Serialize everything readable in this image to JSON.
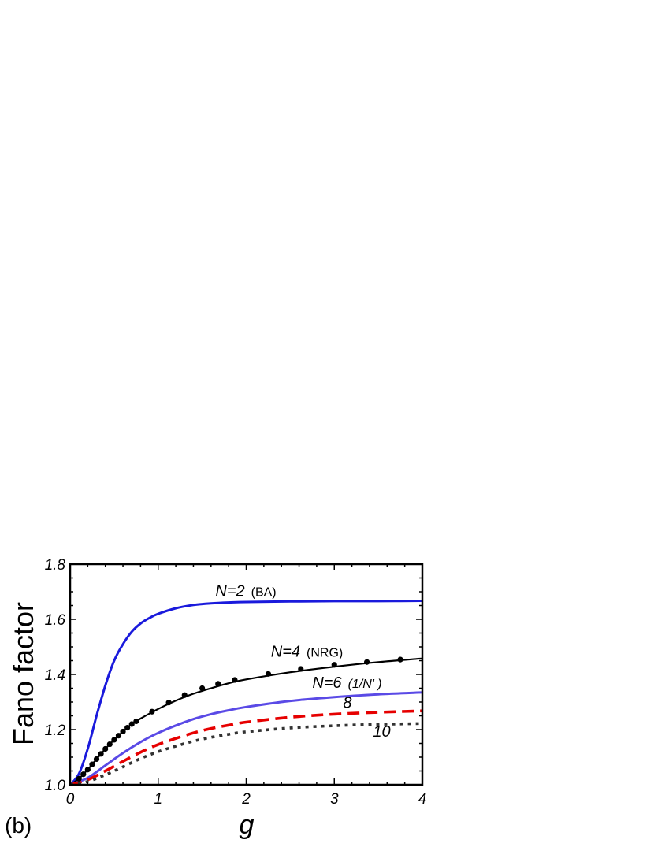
{
  "chart_data": {
    "type": "line",
    "panel_label": "(b)",
    "xlabel": "g",
    "ylabel": "Fano factor",
    "xlim": [
      0,
      4
    ],
    "ylim": [
      1.0,
      1.8
    ],
    "xticks": [
      "0",
      "1",
      "2",
      "3",
      "4"
    ],
    "yticks": [
      "1.0",
      "1.2",
      "1.4",
      "1.6",
      "1.8"
    ],
    "grid": false,
    "legend": "none",
    "series": [
      {
        "name": "N=2",
        "method": "(BA)",
        "color": "#1a1adc",
        "style": "solid",
        "x": [
          0,
          0.1,
          0.2,
          0.3,
          0.4,
          0.5,
          0.6,
          0.7,
          0.8,
          0.9,
          1.0,
          1.2,
          1.4,
          1.6,
          1.8,
          2.0,
          2.5,
          3.0,
          3.5,
          4.0
        ],
        "y": [
          1.0,
          1.04,
          1.13,
          1.25,
          1.36,
          1.45,
          1.51,
          1.555,
          1.585,
          1.605,
          1.62,
          1.64,
          1.652,
          1.658,
          1.661,
          1.663,
          1.665,
          1.666,
          1.666,
          1.667
        ]
      },
      {
        "name": "N=4",
        "method": "(NRG)",
        "color": "#000000",
        "style": "solid-with-markers",
        "x": [
          0,
          0.1,
          0.2,
          0.3,
          0.4,
          0.5,
          0.6,
          0.7,
          0.8,
          1.0,
          1.2,
          1.4,
          1.6,
          1.8,
          2.0,
          2.5,
          3.0,
          3.5,
          4.0
        ],
        "y": [
          1.0,
          1.022,
          1.055,
          1.093,
          1.13,
          1.163,
          1.193,
          1.22,
          1.24,
          1.275,
          1.305,
          1.33,
          1.35,
          1.368,
          1.382,
          1.408,
          1.428,
          1.445,
          1.458
        ]
      },
      {
        "name": "N=4 markers",
        "color": "#000000",
        "style": "markers",
        "x": [
          0.1,
          0.15,
          0.2,
          0.25,
          0.3,
          0.35,
          0.4,
          0.45,
          0.5,
          0.55,
          0.6,
          0.65,
          0.7,
          0.75,
          0.93,
          1.12,
          1.3,
          1.5,
          1.68,
          1.87,
          2.25,
          2.62,
          3.0,
          3.37,
          3.75
        ],
        "y": [
          1.022,
          1.038,
          1.055,
          1.074,
          1.093,
          1.112,
          1.13,
          1.147,
          1.163,
          1.178,
          1.193,
          1.207,
          1.22,
          1.23,
          1.265,
          1.298,
          1.325,
          1.35,
          1.366,
          1.38,
          1.402,
          1.42,
          1.435,
          1.445,
          1.454
        ]
      },
      {
        "name": "N=6",
        "method": "(1/N')",
        "color": "#5a4ae6",
        "style": "solid",
        "x": [
          0,
          0.2,
          0.4,
          0.6,
          0.8,
          1.0,
          1.2,
          1.4,
          1.6,
          1.8,
          2.0,
          2.5,
          3.0,
          3.5,
          4.0
        ],
        "y": [
          1.0,
          1.025,
          1.07,
          1.115,
          1.155,
          1.188,
          1.215,
          1.238,
          1.256,
          1.27,
          1.282,
          1.304,
          1.318,
          1.328,
          1.335
        ]
      },
      {
        "name": "8",
        "color": "#e60000",
        "style": "dashed",
        "x": [
          0,
          0.2,
          0.4,
          0.6,
          0.8,
          1.0,
          1.2,
          1.4,
          1.6,
          1.8,
          2.0,
          2.5,
          3.0,
          3.5,
          4.0
        ],
        "y": [
          1.0,
          1.018,
          1.05,
          1.085,
          1.118,
          1.146,
          1.168,
          1.188,
          1.204,
          1.216,
          1.227,
          1.245,
          1.256,
          1.263,
          1.268
        ]
      },
      {
        "name": "10",
        "color": "#333333",
        "style": "dotted",
        "x": [
          0,
          0.2,
          0.4,
          0.6,
          0.8,
          1.0,
          1.2,
          1.4,
          1.6,
          1.8,
          2.0,
          2.5,
          3.0,
          3.5,
          4.0
        ],
        "y": [
          1.0,
          1.012,
          1.036,
          1.065,
          1.095,
          1.12,
          1.14,
          1.158,
          1.172,
          1.183,
          1.192,
          1.206,
          1.214,
          1.219,
          1.222
        ]
      }
    ],
    "annotations": [
      {
        "main": "N=2",
        "paren": "(BA)",
        "x": 1.65,
        "y": 1.685
      },
      {
        "main": "N=4",
        "paren": "(NRG)",
        "x": 2.28,
        "y": 1.465
      },
      {
        "main": "N=6",
        "paren": "(1/N' )",
        "x": 2.75,
        "y": 1.352
      },
      {
        "main": "8",
        "paren": "",
        "x": 3.1,
        "y": 1.278
      },
      {
        "main": "10",
        "paren": "",
        "x": 3.44,
        "y": 1.175
      }
    ]
  }
}
